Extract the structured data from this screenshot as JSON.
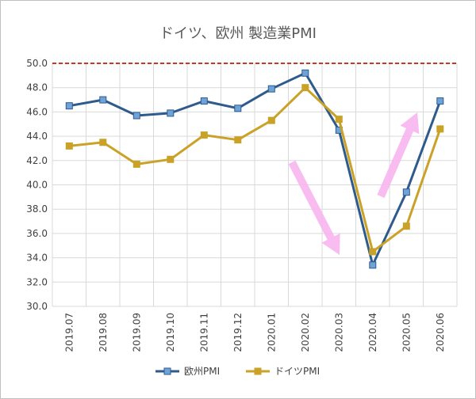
{
  "chart_data": {
    "type": "line",
    "title": "ドイツ、欧州 製造業PMI",
    "categories": [
      "2019.07",
      "2019.08",
      "2019.09",
      "2019.10",
      "2019.11",
      "2019.12",
      "2020.01",
      "2020.02",
      "2020.03",
      "2020.04",
      "2020.05",
      "2020.06"
    ],
    "ylim": [
      30,
      50
    ],
    "yticks": [
      "30.0",
      "32.0",
      "34.0",
      "36.0",
      "38.0",
      "40.0",
      "42.0",
      "44.0",
      "46.0",
      "48.0",
      "50.0"
    ],
    "reference_line": 50,
    "grid": true,
    "legend_position": "bottom",
    "series": [
      {
        "name": "欧州PMI",
        "color": "#2e5a8c",
        "marker": "square",
        "values": [
          46.5,
          47.0,
          45.7,
          45.9,
          46.9,
          46.3,
          47.9,
          49.2,
          44.5,
          33.4,
          39.4,
          46.9
        ]
      },
      {
        "name": "ドイツPMI",
        "color": "#c9a227",
        "marker": "square",
        "values": [
          43.2,
          43.5,
          41.7,
          42.1,
          44.1,
          43.7,
          45.3,
          48.0,
          45.4,
          34.5,
          36.6,
          44.6
        ]
      }
    ],
    "reference_color": "#c0392b",
    "annotation_color": "#f7b5f0"
  }
}
